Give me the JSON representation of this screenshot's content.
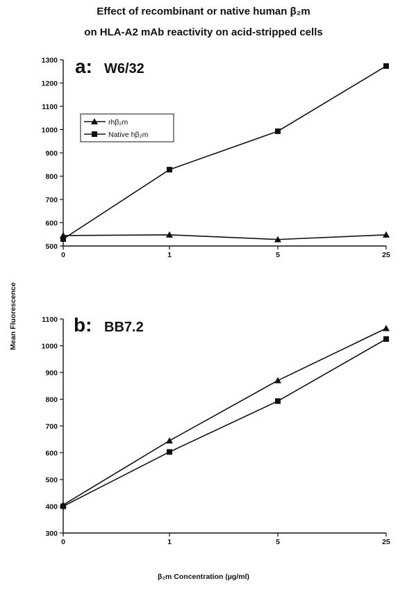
{
  "figure": {
    "title_line1": "Effect of recombinant or native human β₂m",
    "title_line2": "on HLA-A2 mAb reactivity on acid-stripped cells",
    "ylabel": "Mean Fluorescence",
    "xlabel": "β₂m Concentration (µg/ml)"
  },
  "chart_data": [
    {
      "type": "line",
      "panel_letter": "a:",
      "panel_name": "W6/32",
      "categories": [
        "0",
        "1",
        "5",
        "25"
      ],
      "ylim": [
        500,
        1300
      ],
      "yticks": [
        500,
        600,
        700,
        800,
        900,
        1000,
        1100,
        1200,
        1300
      ],
      "legend": {
        "placement": "top-left",
        "entries": [
          "rhβ₂m",
          "Native hβ₂m"
        ]
      },
      "series": [
        {
          "name": "rhβ₂m",
          "marker": "triangle",
          "values": [
            545,
            548,
            528,
            548
          ]
        },
        {
          "name": "Native hβ₂m",
          "marker": "square",
          "values": [
            530,
            828,
            993,
            1273
          ]
        }
      ],
      "grid": false
    },
    {
      "type": "line",
      "panel_letter": "b:",
      "panel_name": "BB7.2",
      "categories": [
        "0",
        "1",
        "5",
        "25"
      ],
      "ylim": [
        300,
        1100
      ],
      "yticks": [
        300,
        400,
        500,
        600,
        700,
        800,
        900,
        1000,
        1100
      ],
      "series": [
        {
          "name": "rhβ₂m",
          "marker": "triangle",
          "values": [
            405,
            645,
            870,
            1065
          ]
        },
        {
          "name": "Native hβ₂m",
          "marker": "square",
          "values": [
            400,
            603,
            793,
            1025
          ]
        }
      ],
      "grid": false
    }
  ]
}
